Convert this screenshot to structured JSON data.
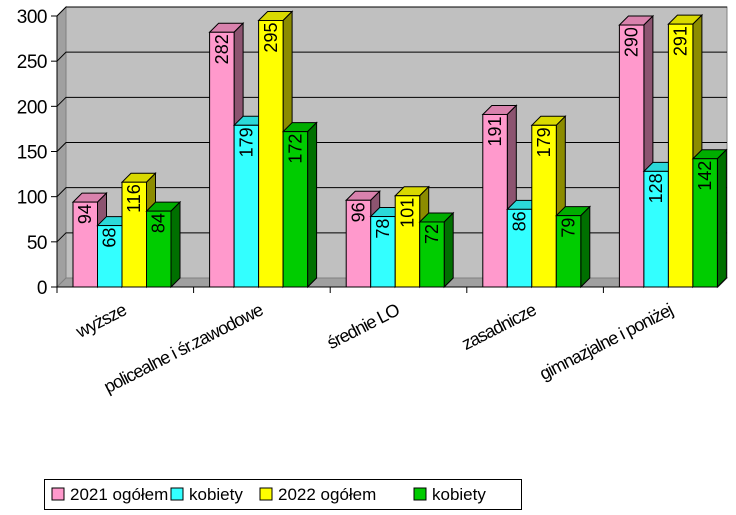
{
  "chart_data": {
    "type": "bar",
    "title": "",
    "xlabel": "",
    "ylabel": "",
    "ylim": [
      0,
      300
    ],
    "yticks": [
      0,
      50,
      100,
      150,
      200,
      250,
      300
    ],
    "grid": true,
    "legend_position": "bottom",
    "categories": [
      "wyższe",
      "policealne i śr.zawodowe",
      "średnie LO",
      "zasadnicze",
      "gimnazjalne i poniżej"
    ],
    "series": [
      {
        "name": "2021 ogółem",
        "values": [
          94,
          282,
          96,
          191,
          290
        ],
        "color": "#ff99cc"
      },
      {
        "name": "kobiety",
        "values": [
          68,
          179,
          78,
          86,
          128
        ],
        "color": "#33ffff"
      },
      {
        "name": "2022 ogółem",
        "values": [
          116,
          295,
          101,
          179,
          291
        ],
        "color": "#ffff00"
      },
      {
        "name": "kobiety",
        "values": [
          84,
          172,
          72,
          79,
          142
        ],
        "color": "#00cc00"
      }
    ],
    "data_labels": [
      [
        "94",
        "282",
        "96",
        "191",
        "290"
      ],
      [
        "68",
        "179",
        "78",
        "86",
        "128"
      ],
      [
        "116",
        "295",
        "101",
        "179",
        "291"
      ],
      [
        "84",
        "172",
        "72",
        "79",
        "142"
      ]
    ],
    "colors": {
      "plot_background": "#c0c0c0",
      "gridline": "#000000"
    }
  }
}
